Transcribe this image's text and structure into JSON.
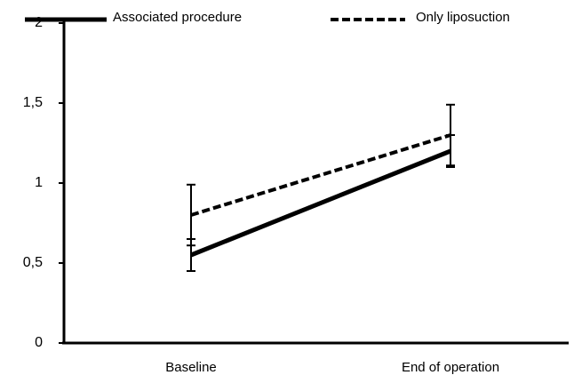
{
  "chart_data": {
    "type": "line",
    "categories": [
      "Baseline",
      "End of operation"
    ],
    "series": [
      {
        "name": "Associated procedure",
        "color": "#000000",
        "dash": false,
        "values": [
          0.55,
          1.2
        ],
        "errors": [
          0.1,
          0.1
        ]
      },
      {
        "name": "Only liposuction",
        "color": "#000000",
        "dash": true,
        "values": [
          0.8,
          1.3
        ],
        "errors": [
          0.19,
          0.19
        ]
      }
    ],
    "ylim": [
      0,
      2
    ],
    "yticks": [
      0,
      {
        "value": 0.5,
        "label": "0,5"
      },
      1,
      {
        "value": 1.5,
        "label": "1,5"
      },
      2
    ],
    "legend": "top"
  }
}
